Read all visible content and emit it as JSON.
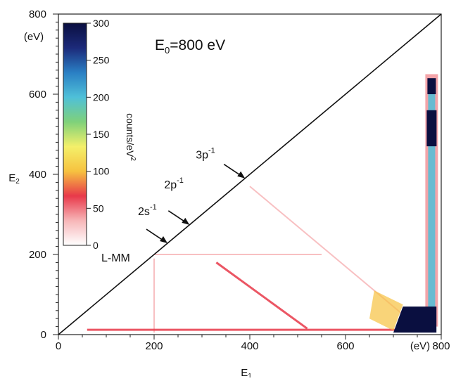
{
  "chart_data": {
    "type": "heatmap",
    "title_main": "E",
    "title_sub": "0",
    "title_rest": "=800 eV",
    "xlabel_main": "E",
    "xlabel_sub": "1",
    "xunit": "(eV)",
    "ylabel_main": "E",
    "ylabel_sub": "2",
    "yunit": "(eV)",
    "xlim": [
      0,
      800
    ],
    "ylim": [
      0,
      800
    ],
    "x_ticks": [
      0,
      200,
      400,
      600,
      800
    ],
    "y_ticks": [
      0,
      200,
      400,
      600,
      800
    ],
    "colorbar": {
      "label_main": "counts/eV",
      "label_sup": "2",
      "range": [
        0,
        300
      ],
      "ticks": [
        0,
        50,
        100,
        150,
        200,
        250,
        300
      ],
      "colors": [
        "#ffffff",
        "#f7b6b8",
        "#e8394a",
        "#f6c240",
        "#f4f06a",
        "#7fd17a",
        "#4fc0d8",
        "#2a7fc4",
        "#1c2a7a",
        "#0a0f40"
      ]
    },
    "annotations": [
      {
        "id": "lmm",
        "label_main": "L-MM",
        "label_sup": "",
        "x": 200,
        "y": 200
      },
      {
        "id": "2s",
        "label_main": "2s",
        "label_sup": "-1",
        "x": 228,
        "y": 228
      },
      {
        "id": "2p",
        "label_main": "2p",
        "label_sup": "-1",
        "x": 274,
        "y": 274
      },
      {
        "id": "3p",
        "label_main": "3p",
        "label_sup": "-1",
        "x": 390,
        "y": 390
      }
    ],
    "features": [
      {
        "name": "sum-line",
        "x": [
          400,
          760
        ],
        "y": [
          370,
          10
        ],
        "level": 40
      },
      {
        "name": "diagonal-2",
        "x": [
          330,
          520
        ],
        "y": [
          180,
          15
        ],
        "level": 60
      },
      {
        "name": "horizontal-band",
        "x": [
          200,
          550
        ],
        "y": [
          200,
          200
        ],
        "level": 45
      },
      {
        "name": "vertical-band-200",
        "x": [
          200,
          200
        ],
        "y": [
          5,
          190
        ],
        "level": 35
      },
      {
        "name": "low-e2-band",
        "x": [
          60,
          760
        ],
        "y": [
          12,
          12
        ],
        "level": 55
      },
      {
        "name": "vertical-column-780",
        "x": [
          780,
          780
        ],
        "y": [
          20,
          650
        ],
        "level": 300
      },
      {
        "name": "hot-corner",
        "x": [
          720,
          790
        ],
        "y": [
          5,
          70
        ],
        "level": 300
      }
    ]
  }
}
